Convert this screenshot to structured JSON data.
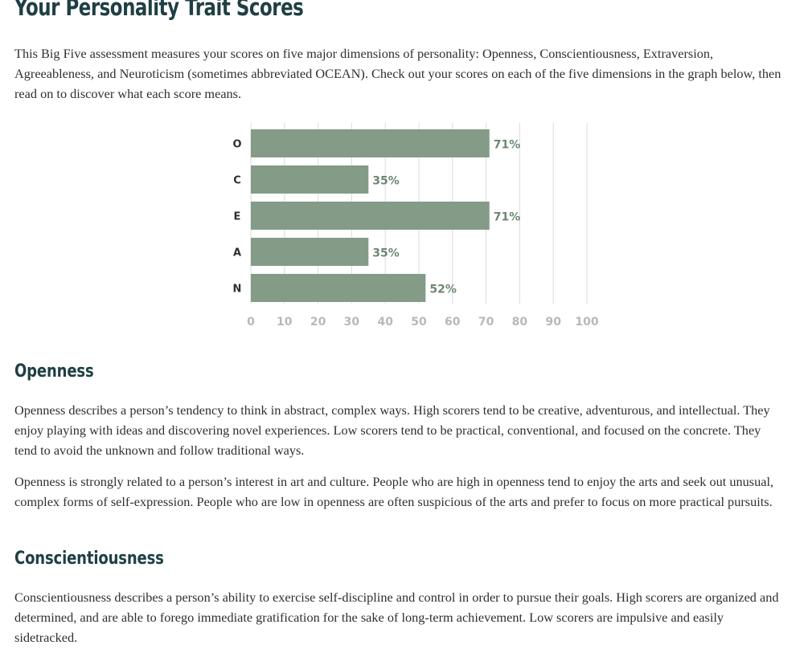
{
  "page": {
    "title": "Your Personality Trait Scores",
    "intro": "This Big Five assessment measures your scores on five major dimensions of personality: Openness, Conscientiousness, Extraversion, Agreeableness, and Neuroticism (sometimes abbreviated OCEAN). Check out your scores on each of the five dimensions in the graph below, then read on to discover what each score means."
  },
  "sections": {
    "openness": {
      "title": "Openness",
      "p1": "Openness describes a person’s tendency to think in abstract, complex ways. High scorers tend to be creative, adventurous, and intellectual. They enjoy playing with ideas and discovering novel experiences. Low scorers tend to be practical, conventional, and focused on the concrete. They tend to avoid the unknown and follow traditional ways.",
      "p2": "Openness is strongly related to a person’s interest in art and culture. People who are high in openness tend to enjoy the arts and seek out unusual, complex forms of self-expression. People who are low in openness are often suspicious of the arts and prefer to focus on more practical pursuits."
    },
    "conscientiousness": {
      "title": "Conscientiousness",
      "p1": "Conscientiousness describes a person’s ability to exercise self-discipline and control in order to pursue their goals. High scorers are organized and determined, and are able to forego immediate gratification for the sake of long-term achievement. Low scorers are impulsive and easily sidetracked."
    }
  },
  "chart_data": {
    "type": "bar",
    "orientation": "horizontal",
    "categories": [
      "O",
      "C",
      "E",
      "A",
      "N"
    ],
    "values": [
      71,
      35,
      71,
      35,
      52
    ],
    "value_labels": [
      "71%",
      "35%",
      "71%",
      "35%",
      "52%"
    ],
    "x_ticks": [
      "0",
      "10",
      "20",
      "30",
      "40",
      "50",
      "60",
      "70",
      "80",
      "90",
      "100"
    ],
    "xlim": [
      0,
      100
    ],
    "grid": true,
    "bar_color": "#849b87",
    "label_color": "#6d8771",
    "grid_color": "#d9dcd9",
    "tick_color": "#b8b8b8"
  }
}
